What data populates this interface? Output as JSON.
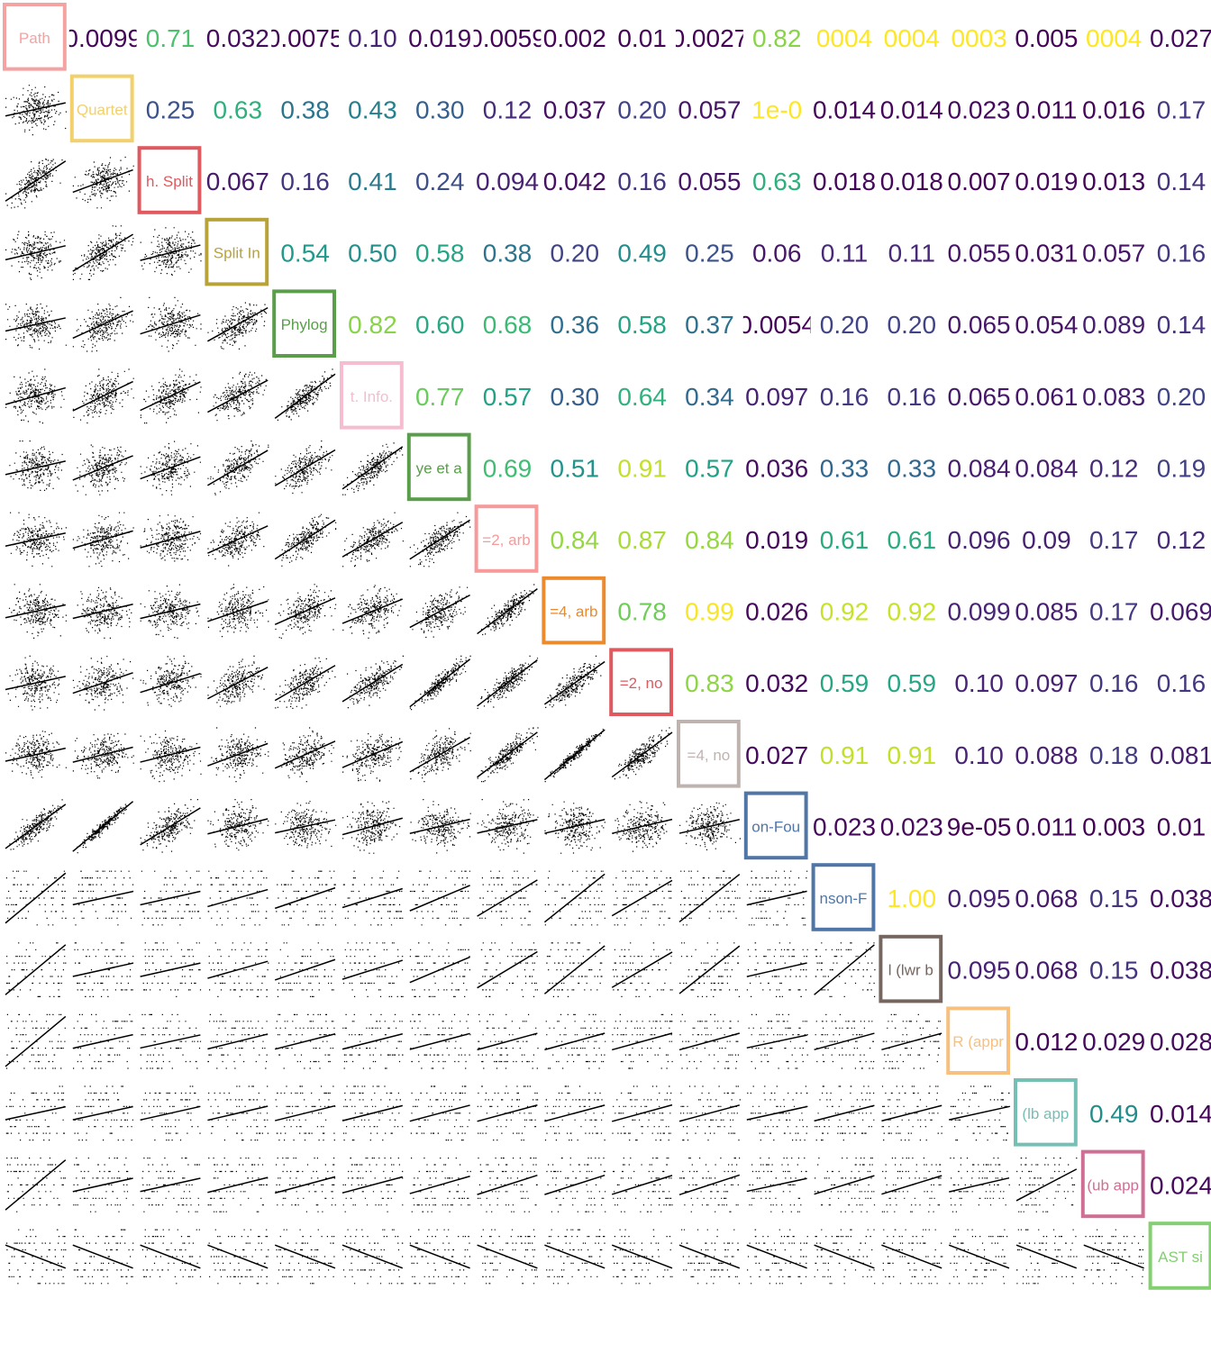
{
  "chart_data": {
    "type": "scatter",
    "layout": "pairs-matrix",
    "variables": [
      {
        "label": "Path",
        "color": "#f4a3a3"
      },
      {
        "label": "Quartet",
        "color": "#f2d06b"
      },
      {
        "label": "h. Split",
        "color": "#e0595f"
      },
      {
        "label": "Split In",
        "color": "#b8a23a"
      },
      {
        "label": "Phylog",
        "color": "#5a9e4b"
      },
      {
        "label": "t. Info.",
        "color": "#f6bcd0"
      },
      {
        "label": "ye et a",
        "color": "#5a9e4b"
      },
      {
        "label": "=2, arb",
        "color": "#f79a9a"
      },
      {
        "label": "=4, arb",
        "color": "#ec8a2e"
      },
      {
        "label": "=2, no",
        "color": "#e0595f"
      },
      {
        "label": "=4, no",
        "color": "#bfb3b0"
      },
      {
        "label": "on-Fou",
        "color": "#4f76a6"
      },
      {
        "label": "nson-F",
        "color": "#4f76a6"
      },
      {
        "label": "l (lwr b",
        "color": "#75675f"
      },
      {
        "label": "R (appr",
        "color": "#f8c07f"
      },
      {
        "label": "(lb app",
        "color": "#76bfb5"
      },
      {
        "label": "(ub app",
        "color": "#d06f94"
      },
      {
        "label": "AST si",
        "color": "#84cf72"
      }
    ],
    "correlations": [
      [
        "0.0099",
        "0.71",
        "0.032",
        "0.0075",
        "0.10",
        "0.019",
        "0.0059",
        "0.002",
        "0.01",
        "0.0027",
        "0.82",
        "0004",
        "0004",
        "0003",
        "0.005",
        "0004",
        "0.027"
      ],
      [
        "0.25",
        "0.63",
        "0.38",
        "0.43",
        "0.30",
        "0.12",
        "0.037",
        "0.20",
        "0.057",
        "1e-0",
        "0.014",
        "0.014",
        "0.023",
        "0.011",
        "0.016",
        "0.17"
      ],
      [
        "0.067",
        "0.16",
        "0.41",
        "0.24",
        "0.094",
        "0.042",
        "0.16",
        "0.055",
        "0.63",
        "0.018",
        "0.018",
        "0.007",
        "0.019",
        "0.013",
        "0.14"
      ],
      [
        "0.54",
        "0.50",
        "0.58",
        "0.38",
        "0.20",
        "0.49",
        "0.25",
        "0.06",
        "0.11",
        "0.11",
        "0.055",
        "0.031",
        "0.057",
        "0.16"
      ],
      [
        "0.82",
        "0.60",
        "0.68",
        "0.36",
        "0.58",
        "0.37",
        "0.0054",
        "0.20",
        "0.20",
        "0.065",
        "0.054",
        "0.089",
        "0.14"
      ],
      [
        "0.77",
        "0.57",
        "0.30",
        "0.64",
        "0.34",
        "0.097",
        "0.16",
        "0.16",
        "0.065",
        "0.061",
        "0.083",
        "0.20"
      ],
      [
        "0.69",
        "0.51",
        "0.91",
        "0.57",
        "0.036",
        "0.33",
        "0.33",
        "0.084",
        "0.084",
        "0.12",
        "0.19"
      ],
      [
        "0.84",
        "0.87",
        "0.84",
        "0.019",
        "0.61",
        "0.61",
        "0.096",
        "0.09",
        "0.17",
        "0.12"
      ],
      [
        "0.78",
        "0.99",
        "0.026",
        "0.92",
        "0.92",
        "0.099",
        "0.085",
        "0.17",
        "0.069"
      ],
      [
        "0.83",
        "0.032",
        "0.59",
        "0.59",
        "0.10",
        "0.097",
        "0.16",
        "0.16"
      ],
      [
        "0.027",
        "0.91",
        "0.91",
        "0.10",
        "0.088",
        "0.18",
        "0.081"
      ],
      [
        "0.023",
        "0.023",
        "9e-05",
        "0.011",
        "0.003",
        "0.01"
      ],
      [
        "1.00",
        "0.095",
        "0.068",
        "0.15",
        "0.038"
      ],
      [
        "0.095",
        "0.068",
        "0.15",
        "0.038"
      ],
      [
        "0.012",
        "0.029",
        "0.028"
      ],
      [
        "0.49",
        "0.014"
      ],
      [
        "0.024"
      ]
    ]
  }
}
